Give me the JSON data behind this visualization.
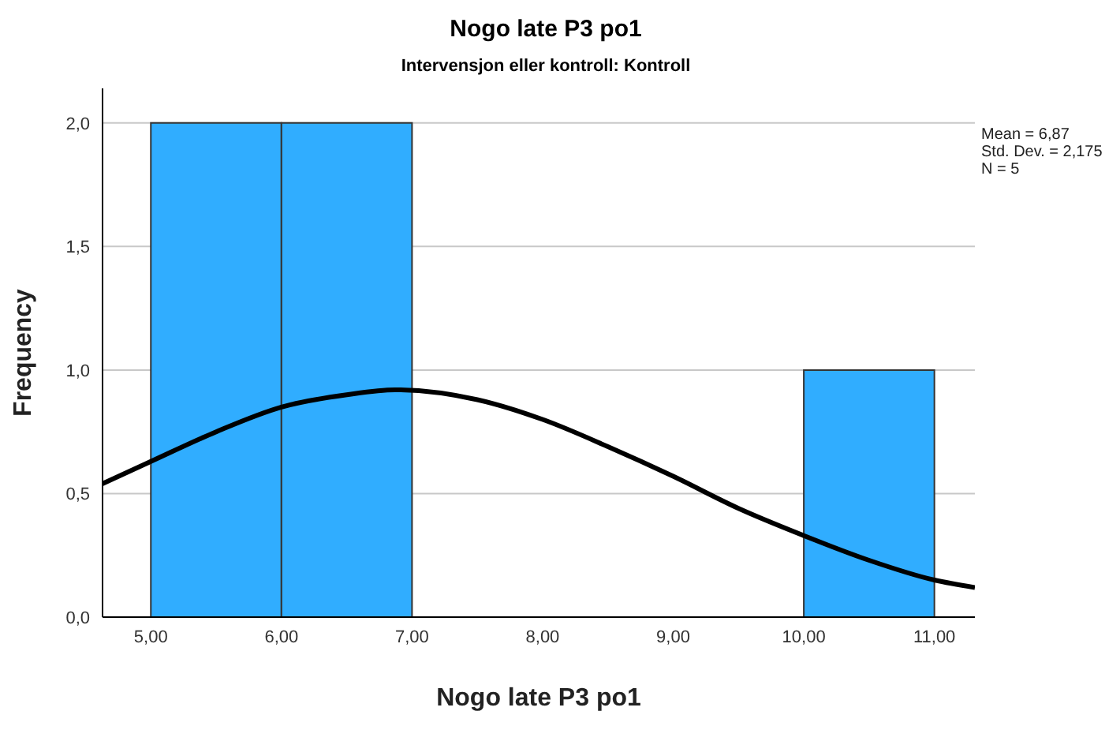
{
  "chart_data": {
    "type": "histogram",
    "title": "Nogo late P3 po1",
    "subtitle": "Intervensjon eller kontroll: Kontroll",
    "xlabel": "Nogo late P3 po1",
    "ylabel": "Frequency",
    "bins": [
      5,
      6,
      7,
      8,
      9,
      10,
      11
    ],
    "values": [
      2,
      2,
      0,
      0,
      0,
      1
    ],
    "color": "#30adff",
    "series": [
      {
        "type": "line",
        "color": "#000000",
        "x": [
          4.63,
          5,
          5.5,
          6,
          6.5,
          6.87,
          7.5,
          8,
          8.5,
          9,
          9.5,
          10,
          10.5,
          11,
          11.31
        ],
        "values": [
          0.54,
          0.63,
          0.75,
          0.85,
          0.9,
          0.92,
          0.88,
          0.8,
          0.69,
          0.57,
          0.44,
          0.33,
          0.23,
          0.15,
          0.12
        ]
      }
    ],
    "xlim": [
      4.63,
      11.31
    ],
    "xticks": [
      {
        "value": 5,
        "label": "5,00"
      },
      {
        "value": 6,
        "label": "6,00"
      },
      {
        "value": 7,
        "label": "7,00"
      },
      {
        "value": 8,
        "label": "8,00"
      },
      {
        "value": 9,
        "label": "9,00"
      },
      {
        "value": 10,
        "label": "10,00"
      },
      {
        "value": 11,
        "label": "11,00"
      }
    ],
    "ylim": [
      0,
      2.14
    ],
    "yticks": [
      {
        "value": 0,
        "label": "0,0"
      },
      {
        "value": 0.5,
        "label": "0,5"
      },
      {
        "value": 1,
        "label": "1,0"
      },
      {
        "value": 1.5,
        "label": "1,5"
      },
      {
        "value": 2,
        "label": "2,0"
      }
    ],
    "grid": "y",
    "annotations": [
      "Mean = 6,87",
      "Std. Dev. = 2,175",
      "N = 5"
    ]
  }
}
